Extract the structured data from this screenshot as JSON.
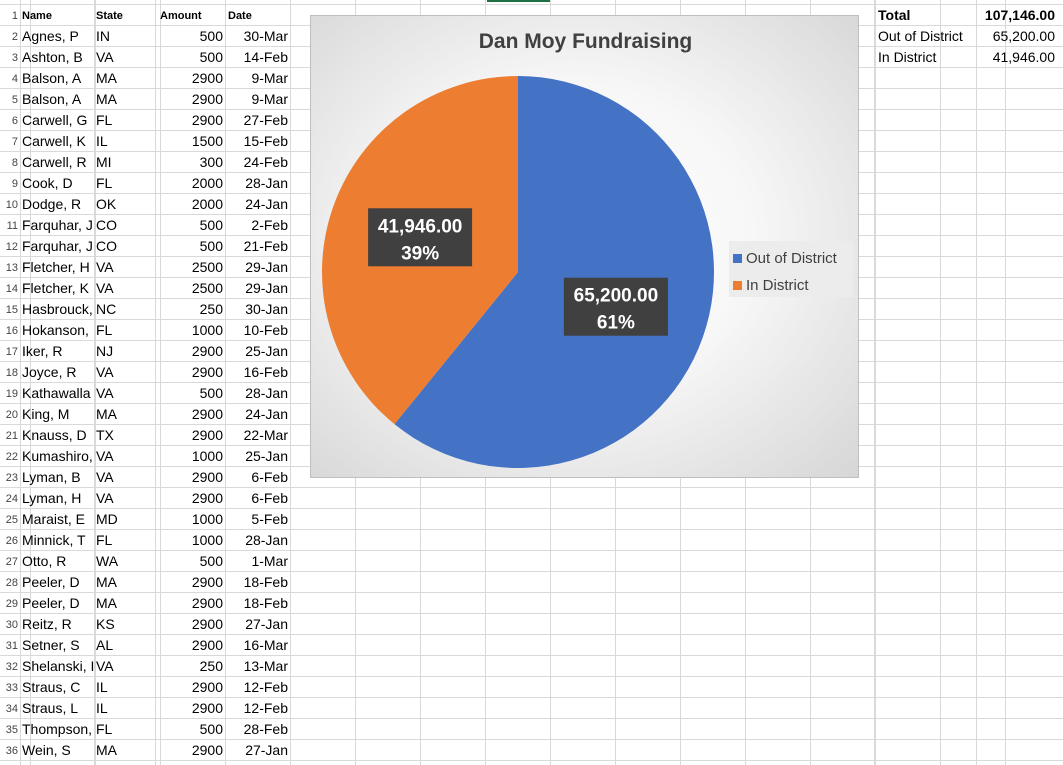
{
  "sheet": {
    "headers": {
      "name": "Name",
      "state": "State",
      "amount": "Amount",
      "date": "Date"
    },
    "rows": [
      [
        "Agnes, P",
        "IN",
        "500",
        "30-Mar"
      ],
      [
        "Ashton, B",
        "VA",
        "500",
        "14-Feb"
      ],
      [
        "Balson, A",
        "MA",
        "2900",
        "9-Mar"
      ],
      [
        "Balson, A",
        "MA",
        "2900",
        "9-Mar"
      ],
      [
        "Carwell, G",
        "FL",
        "2900",
        "27-Feb"
      ],
      [
        "Carwell, K",
        "IL",
        "1500",
        "15-Feb"
      ],
      [
        "Carwell, R",
        "MI",
        "300",
        "24-Feb"
      ],
      [
        "Cook, D",
        "FL",
        "2000",
        "28-Jan"
      ],
      [
        "Dodge, R",
        "OK",
        "2000",
        "24-Jan"
      ],
      [
        "Farquhar, J",
        "CO",
        "500",
        "2-Feb"
      ],
      [
        "Farquhar, J",
        "CO",
        "500",
        "21-Feb"
      ],
      [
        "Fletcher, H",
        "VA",
        "2500",
        "29-Jan"
      ],
      [
        "Fletcher, K",
        "VA",
        "2500",
        "29-Jan"
      ],
      [
        "Hasbrouck,",
        "NC",
        "250",
        "30-Jan"
      ],
      [
        "Hokanson,",
        "FL",
        "1000",
        "10-Feb"
      ],
      [
        "Iker, R",
        "NJ",
        "2900",
        "25-Jan"
      ],
      [
        "Joyce, R",
        "VA",
        "2900",
        "16-Feb"
      ],
      [
        "Kathawalla",
        "VA",
        "500",
        "28-Jan"
      ],
      [
        "King, M",
        "MA",
        "2900",
        "24-Jan"
      ],
      [
        "Knauss, D",
        "TX",
        "2900",
        "22-Mar"
      ],
      [
        "Kumashiro,",
        "VA",
        "1000",
        "25-Jan"
      ],
      [
        "Lyman, B",
        "VA",
        "2900",
        "6-Feb"
      ],
      [
        "Lyman, H",
        "VA",
        "2900",
        "6-Feb"
      ],
      [
        "Maraist, E",
        "MD",
        "1000",
        "5-Feb"
      ],
      [
        "Minnick, T",
        "FL",
        "1000",
        "28-Jan"
      ],
      [
        "Otto, R",
        "WA",
        "500",
        "1-Mar"
      ],
      [
        "Peeler, D",
        "MA",
        "2900",
        "18-Feb"
      ],
      [
        "Peeler, D",
        "MA",
        "2900",
        "18-Feb"
      ],
      [
        "Reitz, R",
        "KS",
        "2900",
        "27-Jan"
      ],
      [
        "Setner, S",
        "AL",
        "2900",
        "16-Mar"
      ],
      [
        "Shelanski, I",
        "VA",
        "250",
        "13-Mar"
      ],
      [
        "Straus, C",
        "IL",
        "2900",
        "12-Feb"
      ],
      [
        "Straus, L",
        "IL",
        "2900",
        "12-Feb"
      ],
      [
        "Thompson,",
        "FL",
        "500",
        "28-Feb"
      ],
      [
        "Wein, S",
        "MA",
        "2900",
        "27-Jan"
      ]
    ]
  },
  "summary": [
    {
      "label": "Total",
      "value": "107,146.00"
    },
    {
      "label": "Out of District",
      "value": "65,200.00"
    },
    {
      "label": "In District",
      "value": "41,946.00"
    }
  ],
  "colors": {
    "out_of_district": "#4472c4",
    "in_district": "#ed7d31",
    "label_bg": "#404040",
    "grid": "#d9d9d9"
  },
  "chart_data": {
    "type": "pie",
    "title": "Dan Moy Fundraising",
    "categories": [
      "Out of District",
      "In District"
    ],
    "values": [
      65200,
      41946
    ],
    "value_labels": [
      "65,200.00",
      "41,946.00"
    ],
    "percent_labels": [
      "61%",
      "39%"
    ],
    "colors": [
      "#4472c4",
      "#ed7d31"
    ],
    "legend": "right"
  }
}
